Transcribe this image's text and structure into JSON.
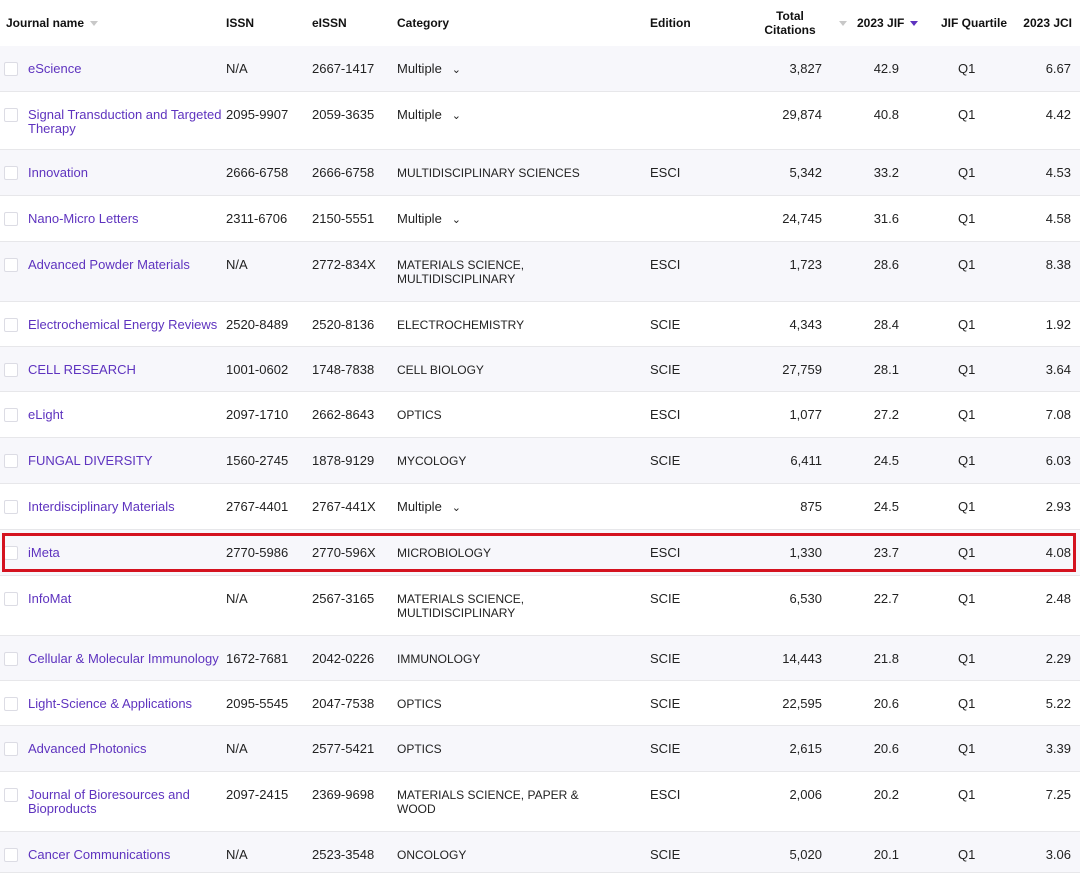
{
  "headers": {
    "journal_name": "Journal name",
    "issn": "ISSN",
    "eissn": "eISSN",
    "category": "Category",
    "edition": "Edition",
    "total_citations": "Total\nCitations",
    "jif": "2023 JIF",
    "quartile": "JIF Quartile",
    "jci": "2023 JCI"
  },
  "sort": {
    "column": "2023 JIF",
    "direction": "descending",
    "active_color": "#5e33bf"
  },
  "colors": {
    "link": "#5e33bf",
    "highlight": "#d4121f",
    "row_alt": "#f7f7fb"
  },
  "highlighted_row": "iMeta",
  "rows": [
    {
      "name": "eScience",
      "issn": "N/A",
      "eissn": "2667-1417",
      "category": "Multiple",
      "multiple": true,
      "edition": "",
      "citations": "3,827",
      "jif": "42.9",
      "quartile": "Q1",
      "jci": "6.67"
    },
    {
      "name": "Signal Transduction and Targeted Therapy",
      "issn": "2095-9907",
      "eissn": "2059-3635",
      "category": "Multiple",
      "multiple": true,
      "edition": "",
      "citations": "29,874",
      "jif": "40.8",
      "quartile": "Q1",
      "jci": "4.42"
    },
    {
      "name": "Innovation",
      "issn": "2666-6758",
      "eissn": "2666-6758",
      "category": "MULTIDISCIPLINARY SCIENCES",
      "multiple": false,
      "edition": "ESCI",
      "citations": "5,342",
      "jif": "33.2",
      "quartile": "Q1",
      "jci": "4.53"
    },
    {
      "name": "Nano-Micro Letters",
      "issn": "2311-6706",
      "eissn": "2150-5551",
      "category": "Multiple",
      "multiple": true,
      "edition": "",
      "citations": "24,745",
      "jif": "31.6",
      "quartile": "Q1",
      "jci": "4.58"
    },
    {
      "name": "Advanced Powder Materials",
      "issn": "N/A",
      "eissn": "2772-834X",
      "category": "MATERIALS SCIENCE, MULTIDISCIPLINARY",
      "multiple": false,
      "edition": "ESCI",
      "citations": "1,723",
      "jif": "28.6",
      "quartile": "Q1",
      "jci": "8.38"
    },
    {
      "name": "Electrochemical Energy Reviews",
      "issn": "2520-8489",
      "eissn": "2520-8136",
      "category": "ELECTROCHEMISTRY",
      "multiple": false,
      "edition": "SCIE",
      "citations": "4,343",
      "jif": "28.4",
      "quartile": "Q1",
      "jci": "1.92"
    },
    {
      "name": "CELL RESEARCH",
      "issn": "1001-0602",
      "eissn": "1748-7838",
      "category": "CELL BIOLOGY",
      "multiple": false,
      "edition": "SCIE",
      "citations": "27,759",
      "jif": "28.1",
      "quartile": "Q1",
      "jci": "3.64"
    },
    {
      "name": "eLight",
      "issn": "2097-1710",
      "eissn": "2662-8643",
      "category": "OPTICS",
      "multiple": false,
      "edition": "ESCI",
      "citations": "1,077",
      "jif": "27.2",
      "quartile": "Q1",
      "jci": "7.08"
    },
    {
      "name": "FUNGAL DIVERSITY",
      "issn": "1560-2745",
      "eissn": "1878-9129",
      "category": "MYCOLOGY",
      "multiple": false,
      "edition": "SCIE",
      "citations": "6,411",
      "jif": "24.5",
      "quartile": "Q1",
      "jci": "6.03"
    },
    {
      "name": "Interdisciplinary Materials",
      "issn": "2767-4401",
      "eissn": "2767-441X",
      "category": "Multiple",
      "multiple": true,
      "edition": "",
      "citations": "875",
      "jif": "24.5",
      "quartile": "Q1",
      "jci": "2.93"
    },
    {
      "name": "iMeta",
      "issn": "2770-5986",
      "eissn": "2770-596X",
      "category": "MICROBIOLOGY",
      "multiple": false,
      "edition": "ESCI",
      "citations": "1,330",
      "jif": "23.7",
      "quartile": "Q1",
      "jci": "4.08"
    },
    {
      "name": "InfoMat",
      "issn": "N/A",
      "eissn": "2567-3165",
      "category": "MATERIALS SCIENCE, MULTIDISCIPLINARY",
      "multiple": false,
      "edition": "SCIE",
      "citations": "6,530",
      "jif": "22.7",
      "quartile": "Q1",
      "jci": "2.48"
    },
    {
      "name": "Cellular & Molecular Immunology",
      "issn": "1672-7681",
      "eissn": "2042-0226",
      "category": "IMMUNOLOGY",
      "multiple": false,
      "edition": "SCIE",
      "citations": "14,443",
      "jif": "21.8",
      "quartile": "Q1",
      "jci": "2.29"
    },
    {
      "name": "Light-Science & Applications",
      "issn": "2095-5545",
      "eissn": "2047-7538",
      "category": "OPTICS",
      "multiple": false,
      "edition": "SCIE",
      "citations": "22,595",
      "jif": "20.6",
      "quartile": "Q1",
      "jci": "5.22"
    },
    {
      "name": "Advanced Photonics",
      "issn": "N/A",
      "eissn": "2577-5421",
      "category": "OPTICS",
      "multiple": false,
      "edition": "SCIE",
      "citations": "2,615",
      "jif": "20.6",
      "quartile": "Q1",
      "jci": "3.39"
    },
    {
      "name": "Journal of Bioresources and Bioproducts",
      "issn": "2097-2415",
      "eissn": "2369-9698",
      "category": "MATERIALS SCIENCE, PAPER & WOOD",
      "multiple": false,
      "edition": "ESCI",
      "citations": "2,006",
      "jif": "20.2",
      "quartile": "Q1",
      "jci": "7.25"
    },
    {
      "name": "Cancer Communications",
      "issn": "N/A",
      "eissn": "2523-3548",
      "category": "ONCOLOGY",
      "multiple": false,
      "edition": "SCIE",
      "citations": "5,020",
      "jif": "20.1",
      "quartile": "Q1",
      "jci": "3.06"
    }
  ]
}
